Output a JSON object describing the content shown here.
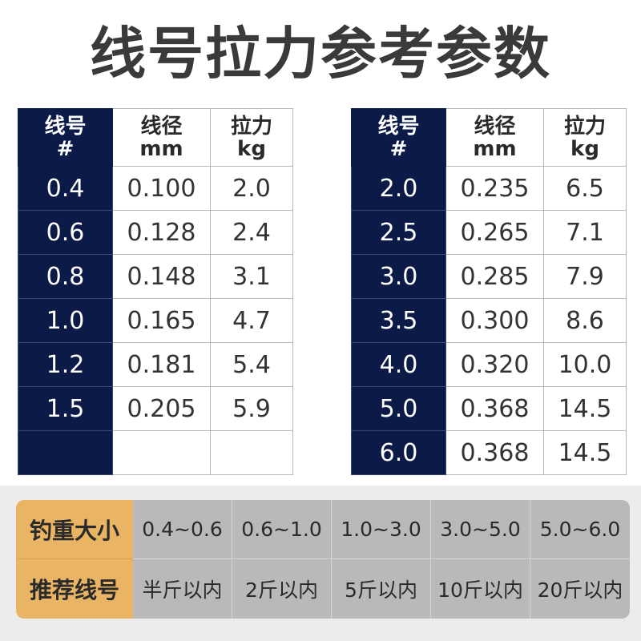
{
  "title": "线号拉力参考参数",
  "spec_table": {
    "headers": {
      "col1_line1": "线号",
      "col1_line2": "#",
      "col2_line1": "线径",
      "col2_line2": "mm",
      "col3_line1": "拉力",
      "col3_line2": "kg"
    },
    "left_rows": [
      {
        "num": "0.4",
        "diameter": "0.100",
        "tension": "2.0"
      },
      {
        "num": "0.6",
        "diameter": "0.128",
        "tension": "2.4"
      },
      {
        "num": "0.8",
        "diameter": "0.148",
        "tension": "3.1"
      },
      {
        "num": "1.0",
        "diameter": "0.165",
        "tension": "4.7"
      },
      {
        "num": "1.2",
        "diameter": "0.181",
        "tension": "5.4"
      },
      {
        "num": "1.5",
        "diameter": "0.205",
        "tension": "5.9"
      },
      {
        "num": "",
        "diameter": "",
        "tension": ""
      }
    ],
    "right_rows": [
      {
        "num": "2.0",
        "diameter": "0.235",
        "tension": "6.5"
      },
      {
        "num": "2.5",
        "diameter": "0.265",
        "tension": "7.1"
      },
      {
        "num": "3.0",
        "diameter": "0.285",
        "tension": "7.9"
      },
      {
        "num": "3.5",
        "diameter": "0.300",
        "tension": "8.6"
      },
      {
        "num": "4.0",
        "diameter": "0.320",
        "tension": "10.0"
      },
      {
        "num": "5.0",
        "diameter": "0.368",
        "tension": "14.5"
      },
      {
        "num": "6.0",
        "diameter": "0.368",
        "tension": "14.5"
      }
    ]
  },
  "weight_table": {
    "row1_label": "钓重大小",
    "row1_values": [
      "0.4~0.6",
      "0.6~1.0",
      "1.0~3.0",
      "3.0~5.0",
      "5.0~6.0"
    ],
    "row2_label": "推荐线号",
    "row2_values": [
      "半斤以内",
      "2斤以内",
      "5斤以内",
      "10斤以内",
      "20斤以内"
    ]
  },
  "colors": {
    "navy": "#0b1a47",
    "orange": "#e9b565",
    "gray_cell": "#b9b9b9",
    "title": "#3a3a3a"
  }
}
